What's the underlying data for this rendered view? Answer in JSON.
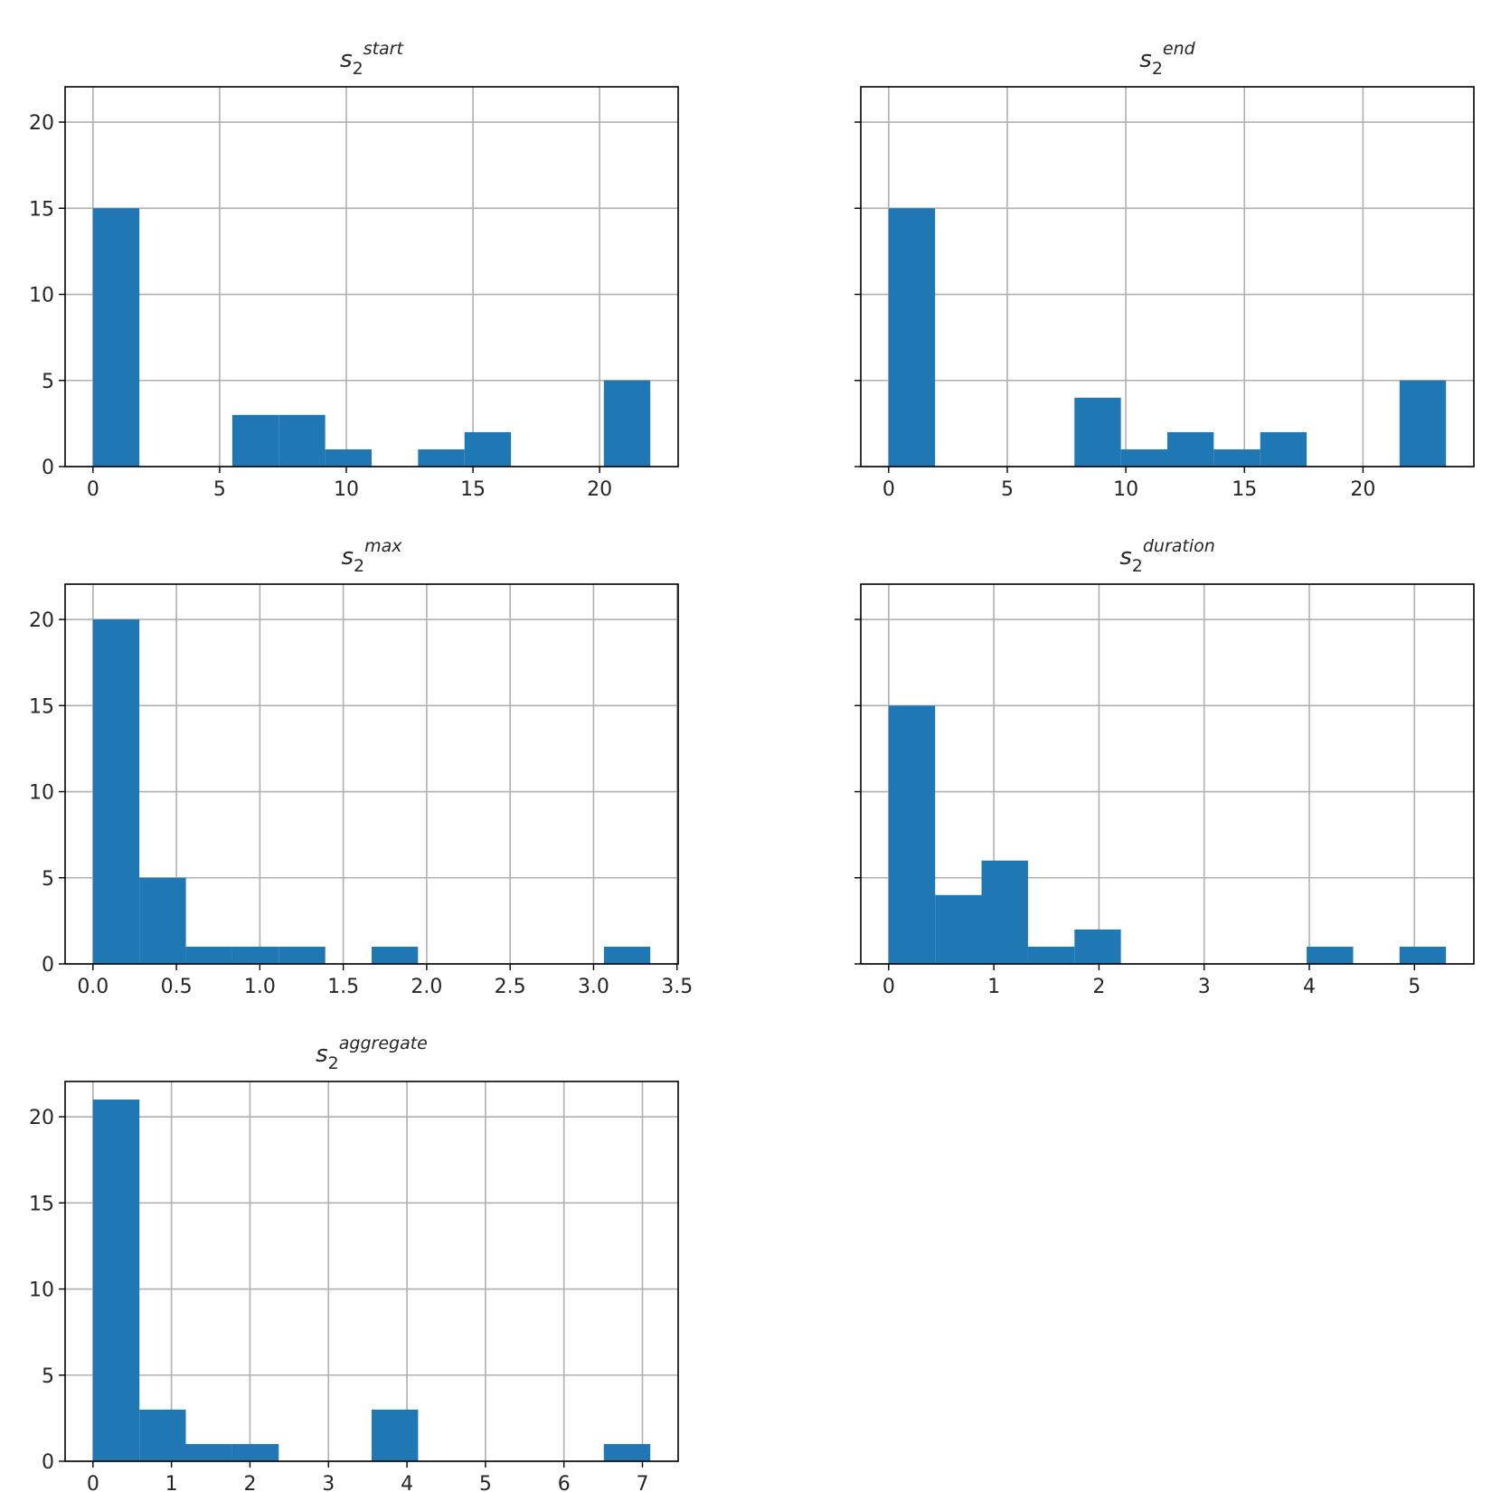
{
  "chart_data": [
    {
      "type": "histogram",
      "title": {
        "base": "s",
        "sub": "2",
        "sup": "start"
      },
      "bins": [
        0,
        1.833,
        3.667,
        5.5,
        7.333,
        9.167,
        11,
        12.833,
        14.667,
        16.5,
        18.333,
        20.167,
        22
      ],
      "counts": [
        15,
        0,
        0,
        3,
        3,
        1,
        0,
        1,
        2,
        0,
        0,
        5
      ],
      "color": "#1f77b4",
      "xlim": [
        -1.1,
        23.1
      ],
      "ylim": [
        0,
        22.05
      ],
      "xticks": [
        0,
        5,
        10,
        15,
        20
      ],
      "yticks": [
        0,
        5,
        10,
        15,
        20
      ],
      "show_ytick_labels": true,
      "grid": true
    },
    {
      "type": "histogram",
      "title": {
        "base": "s",
        "sub": "2",
        "sup": "end"
      },
      "bins": [
        0,
        1.958,
        3.917,
        5.875,
        7.833,
        9.792,
        11.75,
        13.708,
        15.667,
        17.625,
        19.583,
        21.542,
        23.5
      ],
      "counts": [
        15,
        0,
        0,
        0,
        4,
        1,
        2,
        1,
        2,
        0,
        0,
        5
      ],
      "color": "#1f77b4",
      "xlim": [
        -1.175,
        24.675
      ],
      "ylim": [
        0,
        22.05
      ],
      "xticks": [
        0,
        5,
        10,
        15,
        20
      ],
      "yticks": [
        0,
        5,
        10,
        15,
        20
      ],
      "show_ytick_labels": false,
      "grid": true
    },
    {
      "type": "histogram",
      "title": {
        "base": "s",
        "sub": "2",
        "sup": "max"
      },
      "bins": [
        0,
        0.278,
        0.557,
        0.835,
        1.113,
        1.392,
        1.67,
        1.948,
        2.227,
        2.505,
        2.783,
        3.062,
        3.34
      ],
      "counts": [
        20,
        5,
        1,
        1,
        1,
        0,
        1,
        0,
        0,
        0,
        0,
        1
      ],
      "color": "#1f77b4",
      "xlim": [
        -0.167,
        3.507
      ],
      "ylim": [
        0,
        22.05
      ],
      "xticks": [
        {
          "value": 0,
          "label": "0.0"
        },
        0.5,
        {
          "value": 1,
          "label": "1.0"
        },
        1.5,
        {
          "value": 2,
          "label": "2.0"
        },
        2.5,
        {
          "value": 3,
          "label": "3.0"
        },
        3.5
      ],
      "yticks": [
        0,
        5,
        10,
        15,
        20
      ],
      "show_ytick_labels": true,
      "grid": true
    },
    {
      "type": "histogram",
      "title": {
        "base": "s",
        "sub": "2",
        "sup": "duration"
      },
      "bins": [
        0,
        0.442,
        0.883,
        1.325,
        1.767,
        2.208,
        2.65,
        3.092,
        3.533,
        3.975,
        4.417,
        4.858,
        5.3
      ],
      "counts": [
        15,
        4,
        6,
        1,
        2,
        0,
        0,
        0,
        0,
        1,
        0,
        1
      ],
      "color": "#1f77b4",
      "xlim": [
        -0.265,
        5.565
      ],
      "ylim": [
        0,
        22.05
      ],
      "xticks": [
        0,
        1,
        2,
        3,
        4,
        5
      ],
      "yticks": [
        0,
        5,
        10,
        15,
        20
      ],
      "show_ytick_labels": false,
      "grid": true
    },
    {
      "type": "histogram",
      "title": {
        "base": "s",
        "sub": "2",
        "sup": "aggregate"
      },
      "bins": [
        0,
        0.592,
        1.183,
        1.775,
        2.367,
        2.958,
        3.55,
        4.142,
        4.733,
        5.325,
        5.917,
        6.508,
        7.1
      ],
      "counts": [
        21,
        3,
        1,
        1,
        0,
        0,
        3,
        0,
        0,
        0,
        0,
        1
      ],
      "color": "#1f77b4",
      "xlim": [
        -0.355,
        7.455
      ],
      "ylim": [
        0,
        22.05
      ],
      "xticks": [
        0,
        1,
        2,
        3,
        4,
        5,
        6,
        7
      ],
      "yticks": [
        0,
        5,
        10,
        15,
        20
      ],
      "show_ytick_labels": true,
      "grid": true
    }
  ]
}
